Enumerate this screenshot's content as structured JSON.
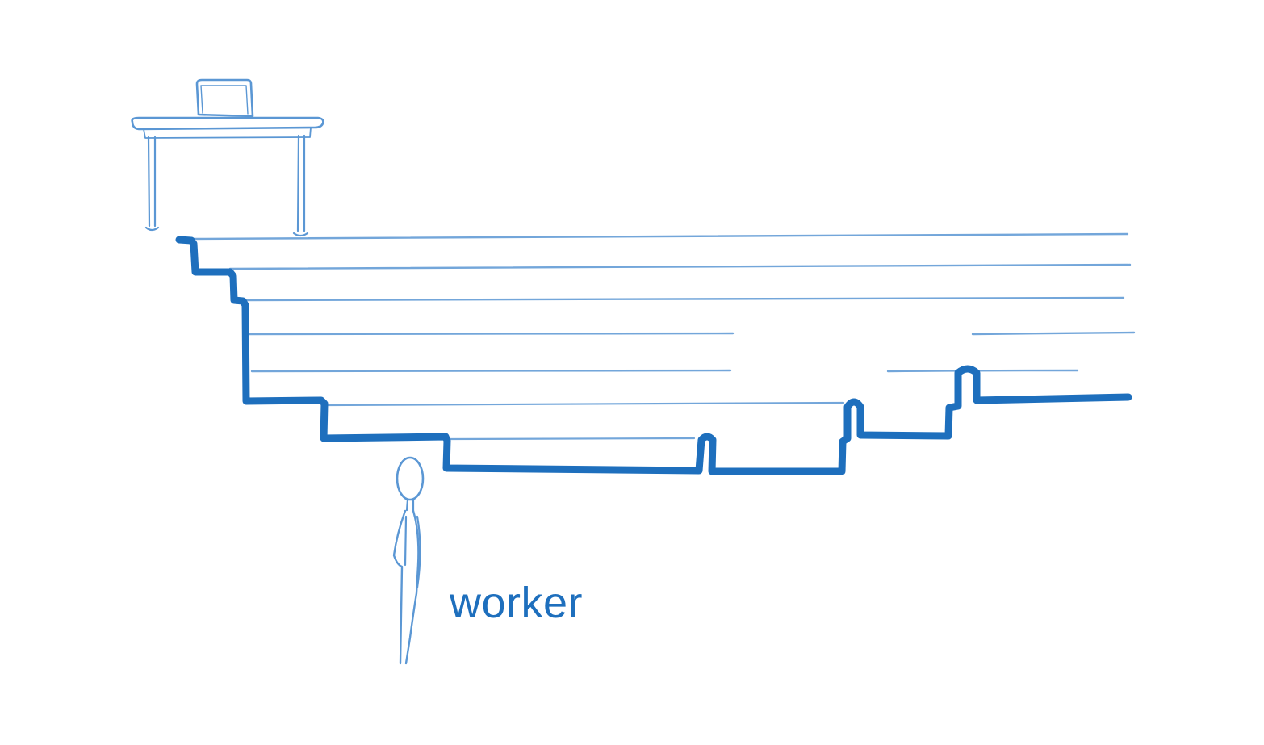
{
  "labels": {
    "worker": "worker"
  },
  "colors": {
    "background": "#ffffff",
    "sketch_line": "#5b97d4",
    "sketch_faint": "#a9c9ea",
    "staircase": "#1e6fbd",
    "label_text": "#1e6fbd"
  },
  "figures": {
    "desk": "desk-with-monitor-icon",
    "person": "stick-figure-worker-icon"
  }
}
